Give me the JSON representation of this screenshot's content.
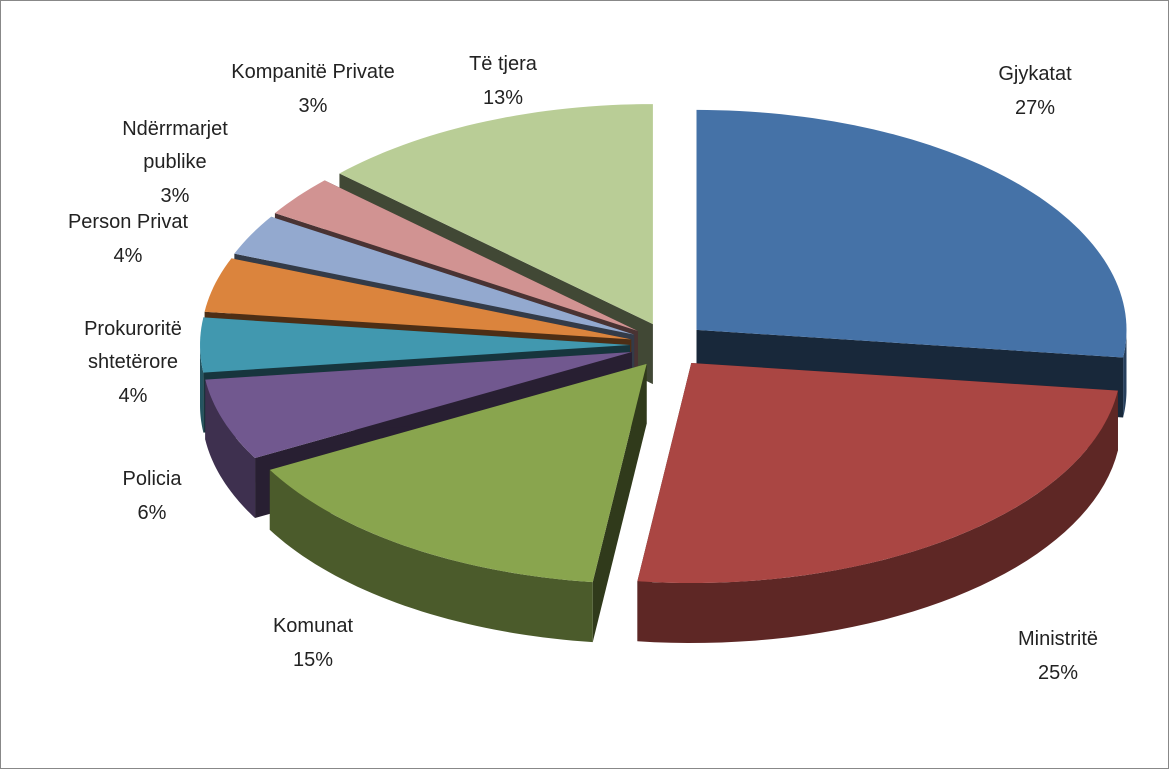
{
  "chart_data": {
    "type": "pie3d",
    "categories": [
      "Gjykatat",
      "Ministritë",
      "Komunat",
      "Policia",
      "Prokuroritë shtetërore",
      "Person Privat",
      "Ndërrmarjet publike",
      "Kompanitë Private",
      "Të tjera"
    ],
    "values": [
      27,
      25,
      15,
      6,
      4,
      4,
      3,
      3,
      13
    ],
    "value_labels": [
      "27%",
      "25%",
      "15%",
      "6%",
      "4%",
      "4%",
      "3%",
      "3%",
      "13%"
    ],
    "colors": [
      "#4572a7",
      "#aa4643",
      "#89a54e",
      "#71588f",
      "#4198af",
      "#db843d",
      "#93a9cf",
      "#d19392",
      "#b9cd96"
    ]
  }
}
